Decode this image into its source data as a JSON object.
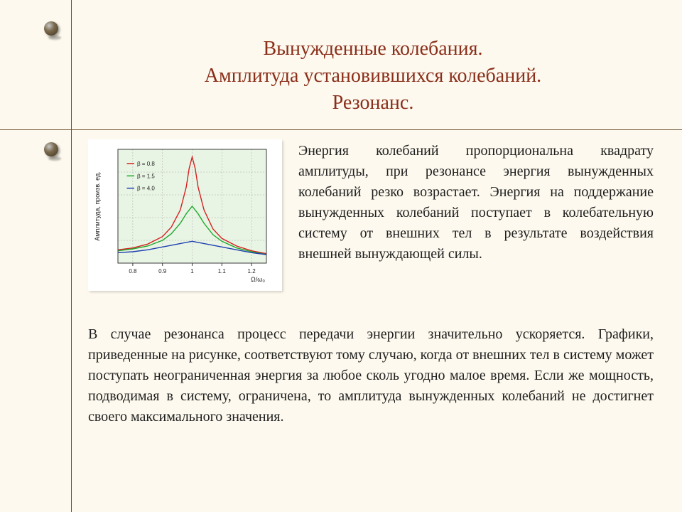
{
  "title": {
    "line1": "Вынужденные колебания.",
    "line2": "Амплитуда установившихся колебаний.",
    "line3": "Резонанс."
  },
  "paragraphs": {
    "right": "Энергия колебаний пропорциональна квадрату амплитуды, при резонансе энергия вынужденных колебаний резко возрастает. Энергия на поддержание вынужденных колебаний поступает в колебательную систему от внешних тел в результате воздействия внешней вынуждающей силы.",
    "bottom": "В случае резонанса процесс передачи энергии значительно ускоряется. Графики, приведенные на рисунке, соответствуют тому случаю, когда от внешних тел в систему может поступать неограниченная энергия за любое сколь угодно малое время. Если же мощность, подводимая в систему, ограничена, то амплитуда вынужденных колебаний не достигнет своего максимального значения."
  },
  "chart": {
    "type": "line",
    "background_color": "#e9f5e4",
    "frame_color": "#3a3a3a",
    "grid_color": "#a9a9a9",
    "xlabel": "Ω/ω₀",
    "ylabel": "Амплитуда, произв. ед.",
    "label_fontsize": 9,
    "tick_fontsize": 8,
    "xlim": [
      0.75,
      1.25
    ],
    "xticks": [
      0.8,
      0.9,
      1.0,
      1.1,
      1.2
    ],
    "xtick_labels": [
      "0.8",
      "0.9",
      "1",
      "1.1",
      "1.2"
    ],
    "ylim": [
      0,
      12
    ],
    "series": [
      {
        "label": "β = 0.8",
        "color": "#d62020",
        "width": 1.4,
        "x": [
          0.75,
          0.8,
          0.85,
          0.9,
          0.93,
          0.96,
          0.98,
          0.99,
          1.0,
          1.01,
          1.02,
          1.04,
          1.07,
          1.1,
          1.15,
          1.2,
          1.25
        ],
        "y": [
          1.4,
          1.6,
          2.0,
          2.8,
          3.8,
          5.6,
          8.0,
          10.0,
          11.2,
          10.0,
          8.0,
          5.6,
          3.6,
          2.6,
          1.8,
          1.3,
          1.0
        ]
      },
      {
        "label": "β = 1.5",
        "color": "#1fa82e",
        "width": 1.4,
        "x": [
          0.75,
          0.8,
          0.85,
          0.9,
          0.93,
          0.96,
          0.98,
          1.0,
          1.02,
          1.04,
          1.07,
          1.1,
          1.15,
          1.2,
          1.25
        ],
        "y": [
          1.3,
          1.5,
          1.8,
          2.4,
          3.1,
          4.2,
          5.2,
          6.0,
          5.2,
          4.2,
          3.0,
          2.3,
          1.6,
          1.2,
          0.9
        ]
      },
      {
        "label": "β = 4.0",
        "color": "#1e3fb0",
        "width": 1.4,
        "x": [
          0.75,
          0.8,
          0.85,
          0.9,
          0.95,
          1.0,
          1.05,
          1.1,
          1.15,
          1.2,
          1.25
        ],
        "y": [
          1.1,
          1.2,
          1.4,
          1.7,
          2.0,
          2.3,
          2.0,
          1.7,
          1.4,
          1.1,
          0.9
        ]
      }
    ],
    "legend": {
      "x": 0.78,
      "y_top": 10.5,
      "fontsize": 8,
      "swatch_w": 0.025,
      "line_gap": 1.3
    }
  }
}
